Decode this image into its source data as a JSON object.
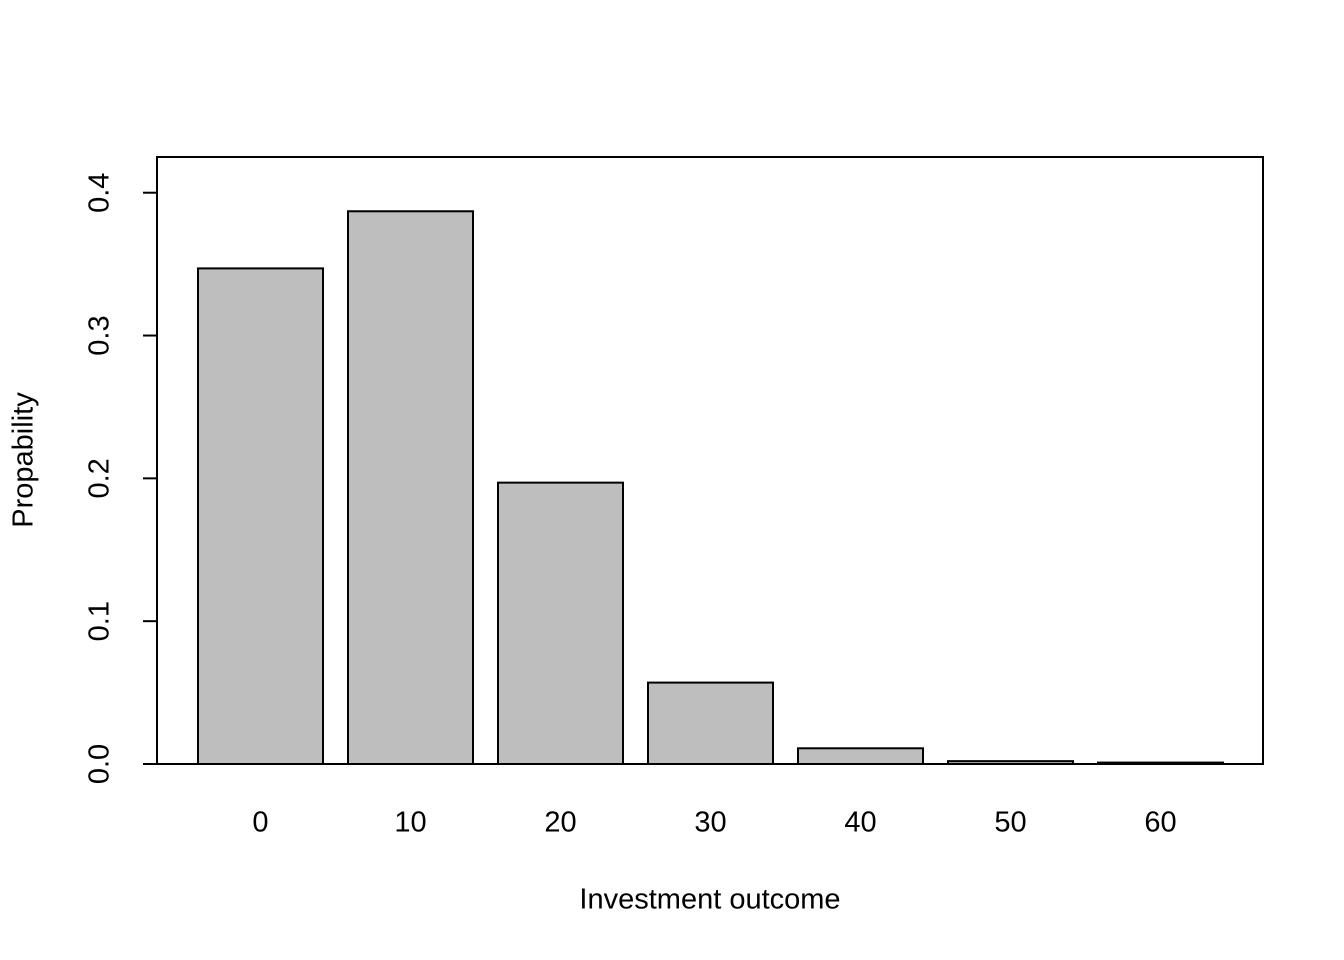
{
  "chart_data": {
    "type": "bar",
    "x_label": "Investment outcome",
    "y_label": "Propability",
    "categories": [
      "0",
      "10",
      "20",
      "30",
      "40",
      "50",
      "60"
    ],
    "values": [
      0.347,
      0.387,
      0.197,
      0.057,
      0.011,
      0.002,
      0.001
    ],
    "color": "#bebebe",
    "ylim": [
      0,
      0.425
    ],
    "yticks": [
      {
        "value": 0,
        "label": "0.0"
      },
      0.1,
      0.2,
      0.3,
      0.4
    ]
  }
}
